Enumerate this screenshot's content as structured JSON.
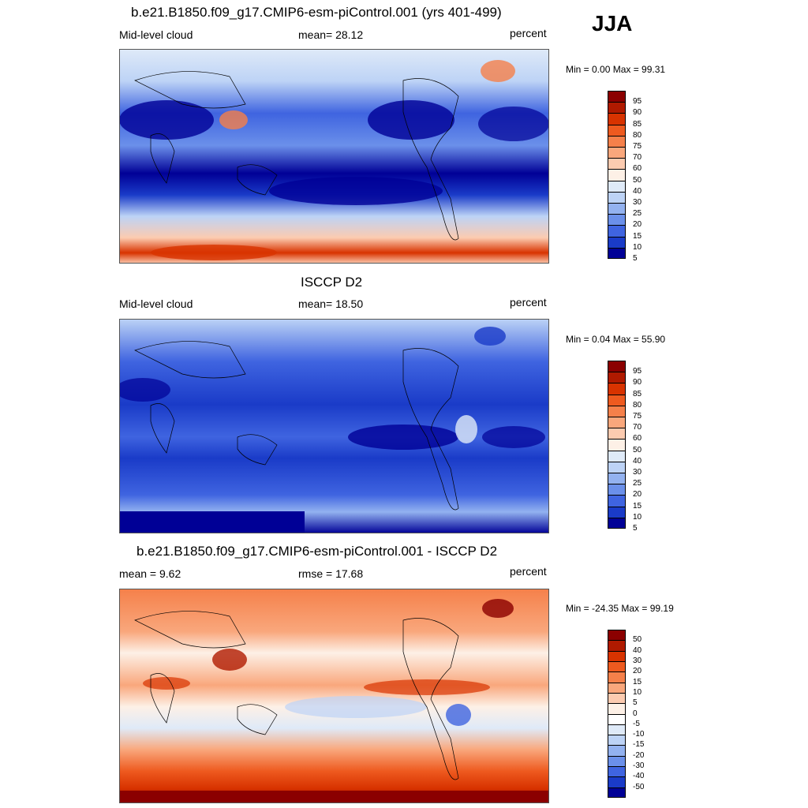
{
  "season": "JJA",
  "panels": [
    {
      "title": "b.e21.B1850.f09_g17.CMIP6-esm-piControl.001 (yrs 401-499)",
      "left_label": "Mid-level cloud",
      "center_label": "mean=  28.12",
      "right_label": "percent",
      "minmax": "Min =   0.00 Max =  99.31",
      "colorbar_labels": [
        "95",
        "90",
        "85",
        "80",
        "75",
        "70",
        "60",
        "50",
        "40",
        "30",
        "25",
        "20",
        "15",
        "10",
        "5"
      ],
      "colorbar_colors": [
        "#8b0000",
        "#b01a00",
        "#d83300",
        "#ee5a1f",
        "#f5804a",
        "#f9a77c",
        "#fccbb0",
        "#fdf0e6",
        "#dfeaf8",
        "#bdd3f6",
        "#93b2f0",
        "#6b90ea",
        "#3f64e0",
        "#1a3bc8",
        "#000096"
      ]
    },
    {
      "title": "ISCCP D2",
      "left_label": "Mid-level cloud",
      "center_label": "mean=  18.50",
      "right_label": "percent",
      "minmax": "Min =   0.04 Max =  55.90",
      "colorbar_labels": [
        "95",
        "90",
        "85",
        "80",
        "75",
        "70",
        "60",
        "50",
        "40",
        "30",
        "25",
        "20",
        "15",
        "10",
        "5"
      ],
      "colorbar_colors": [
        "#8b0000",
        "#b01a00",
        "#d83300",
        "#ee5a1f",
        "#f5804a",
        "#f9a77c",
        "#fccbb0",
        "#fdf0e6",
        "#dfeaf8",
        "#bdd3f6",
        "#93b2f0",
        "#6b90ea",
        "#3f64e0",
        "#1a3bc8",
        "#000096"
      ]
    },
    {
      "title": "b.e21.B1850.f09_g17.CMIP6-esm-piControl.001 - ISCCP D2",
      "left_label": "mean =   9.62",
      "center_label": "rmse =  17.68",
      "right_label": "percent",
      "minmax": "Min = -24.35 Max =  99.19",
      "colorbar_labels": [
        "50",
        "40",
        "30",
        "20",
        "15",
        "10",
        "5",
        "0",
        "-5",
        "-10",
        "-15",
        "-20",
        "-30",
        "-40",
        "-50"
      ],
      "colorbar_colors": [
        "#8b0000",
        "#b01a00",
        "#d83300",
        "#ee5a1f",
        "#f5804a",
        "#f9a77c",
        "#fccbb0",
        "#fdf0e6",
        "#ffffff",
        "#dfeaf8",
        "#bdd3f6",
        "#93b2f0",
        "#6b90ea",
        "#3f64e0",
        "#1a3bc8",
        "#000096"
      ]
    }
  ],
  "chart_data": [
    {
      "type": "heatmap",
      "title": "b.e21.B1850.f09_g17.CMIP6-esm-piControl.001 (yrs 401-499)",
      "variable": "Mid-level cloud",
      "units": "percent",
      "mean": 28.12,
      "min": 0.0,
      "max": 99.31,
      "levels": [
        5,
        10,
        15,
        20,
        25,
        30,
        40,
        50,
        60,
        70,
        75,
        80,
        85,
        90,
        95
      ]
    },
    {
      "type": "heatmap",
      "title": "ISCCP D2",
      "variable": "Mid-level cloud",
      "units": "percent",
      "mean": 18.5,
      "min": 0.04,
      "max": 55.9,
      "levels": [
        5,
        10,
        15,
        20,
        25,
        30,
        40,
        50,
        60,
        70,
        75,
        80,
        85,
        90,
        95
      ]
    },
    {
      "type": "heatmap",
      "title": "b.e21.B1850.f09_g17.CMIP6-esm-piControl.001 - ISCCP D2",
      "units": "percent",
      "mean": 9.62,
      "rmse": 17.68,
      "min": -24.35,
      "max": 99.19,
      "levels": [
        -50,
        -40,
        -30,
        -20,
        -15,
        -10,
        -5,
        0,
        5,
        10,
        15,
        20,
        30,
        40,
        50
      ]
    }
  ]
}
